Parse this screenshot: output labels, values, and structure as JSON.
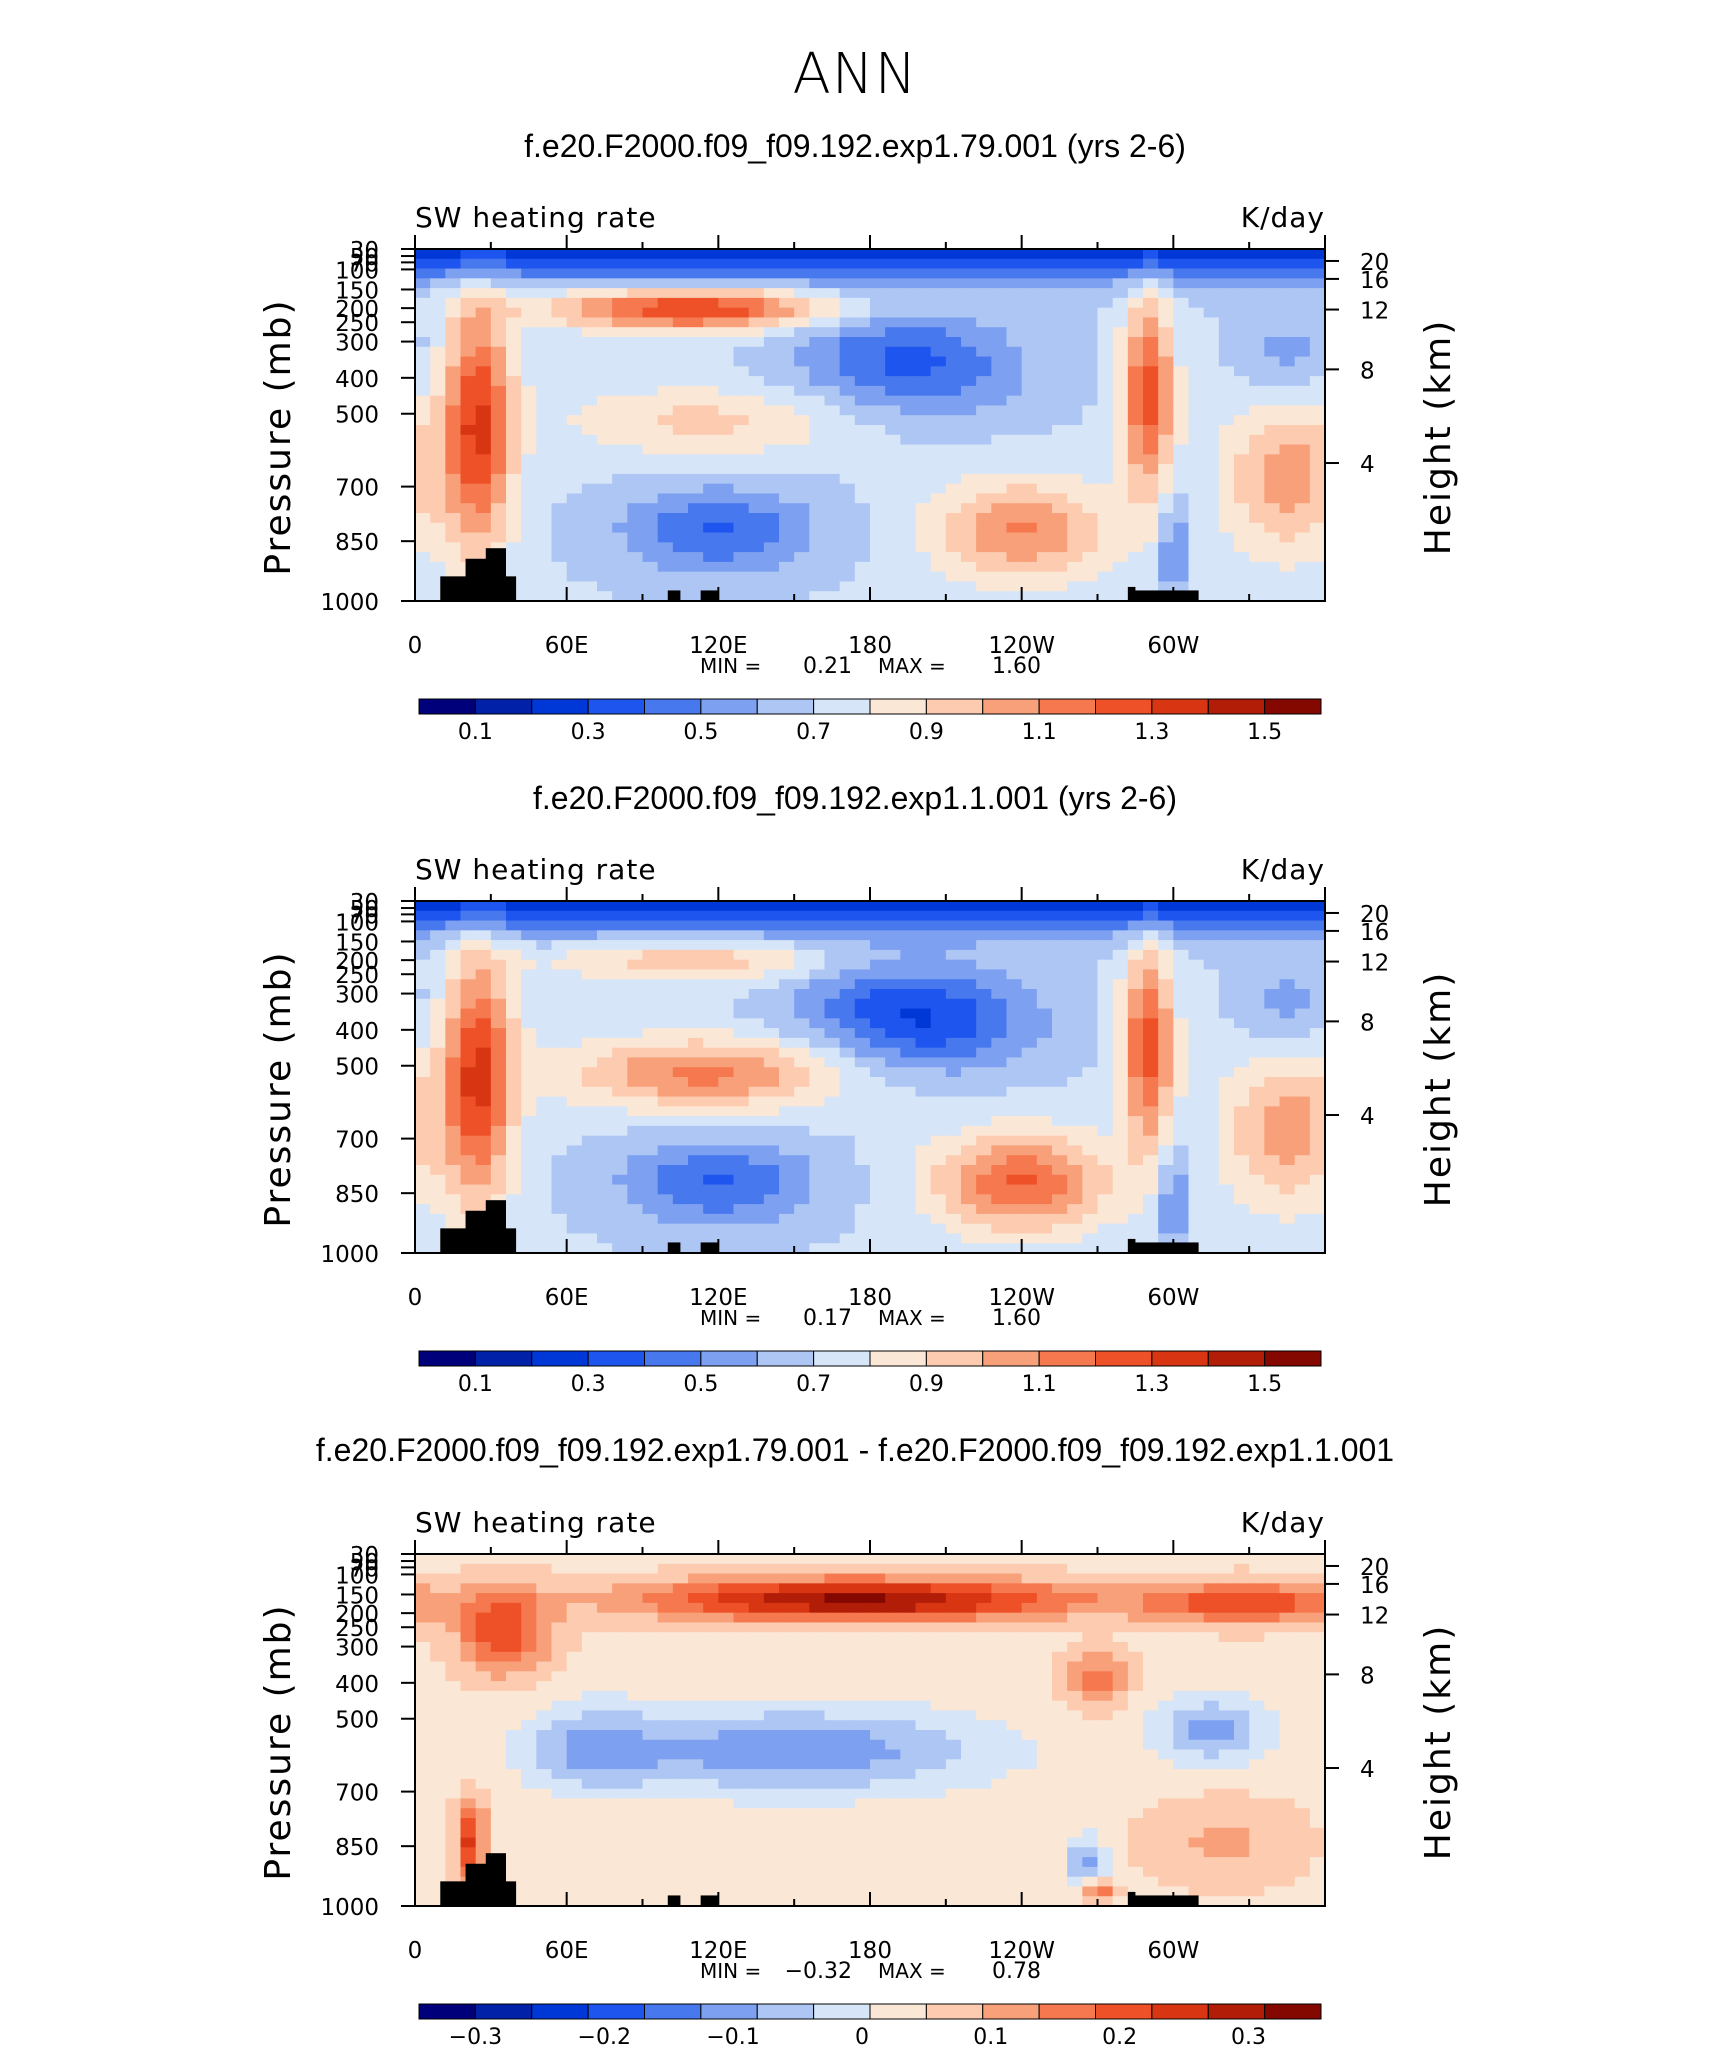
{
  "figure": {
    "title": "ANN"
  },
  "chart_data": [
    {
      "type": "heatmap",
      "title": "f.e20.F2000.f09_f09.192.exp1.79.001 (yrs 2-6)",
      "left_label": "SW heating rate",
      "right_label": "K/day",
      "ylabel": "Pressure (mb)",
      "ylabel_right": "Height (km)",
      "x_ticks": [
        "0",
        "60E",
        "120E",
        "180",
        "120W",
        "60W"
      ],
      "y_ticks": [
        "30",
        "50",
        "70",
        "100",
        "150",
        "200",
        "250",
        "300",
        "400",
        "500",
        "700",
        "850",
        "1000"
      ],
      "y_right_ticks": [
        "20",
        "16",
        "12",
        "8",
        "4"
      ],
      "stats": {
        "min_label": "MIN =",
        "min_value": "0.21",
        "max_label": "MAX =",
        "max_value": "1.60"
      },
      "colorbar_levels": [
        "0.1",
        "0.3",
        "0.5",
        "0.7",
        "0.9",
        "1.1",
        "1.3",
        "1.5"
      ],
      "colorbar_colors": [
        "#00007a",
        "#0021a8",
        "#0038d8",
        "#1e55ee",
        "#4878ee",
        "#7ea0f0",
        "#aec6f4",
        "#d6e6f8",
        "#fbe7d6",
        "#fccbb0",
        "#f8a07a",
        "#f5784e",
        "#ee5028",
        "#d83612",
        "#b21d08",
        "#840800"
      ]
    },
    {
      "type": "heatmap",
      "title": "f.e20.F2000.f09_f09.192.exp1.1.001 (yrs 2-6)",
      "left_label": "SW heating rate",
      "right_label": "K/day",
      "ylabel": "Pressure (mb)",
      "ylabel_right": "Height (km)",
      "x_ticks": [
        "0",
        "60E",
        "120E",
        "180",
        "120W",
        "60W"
      ],
      "y_ticks": [
        "30",
        "50",
        "70",
        "100",
        "150",
        "200",
        "250",
        "300",
        "400",
        "500",
        "700",
        "850",
        "1000"
      ],
      "y_right_ticks": [
        "20",
        "16",
        "12",
        "8",
        "4"
      ],
      "stats": {
        "min_label": "MIN =",
        "min_value": "0.17",
        "max_label": "MAX =",
        "max_value": "1.60"
      },
      "colorbar_levels": [
        "0.1",
        "0.3",
        "0.5",
        "0.7",
        "0.9",
        "1.1",
        "1.3",
        "1.5"
      ],
      "colorbar_colors": [
        "#00007a",
        "#0021a8",
        "#0038d8",
        "#1e55ee",
        "#4878ee",
        "#7ea0f0",
        "#aec6f4",
        "#d6e6f8",
        "#fbe7d6",
        "#fccbb0",
        "#f8a07a",
        "#f5784e",
        "#ee5028",
        "#d83612",
        "#b21d08",
        "#840800"
      ]
    },
    {
      "type": "heatmap",
      "title": "f.e20.F2000.f09_f09.192.exp1.79.001 - f.e20.F2000.f09_f09.192.exp1.1.001",
      "left_label": "SW heating rate",
      "right_label": "K/day",
      "ylabel": "Pressure (mb)",
      "ylabel_right": "Height (km)",
      "x_ticks": [
        "0",
        "60E",
        "120E",
        "180",
        "120W",
        "60W"
      ],
      "y_ticks": [
        "30",
        "50",
        "70",
        "100",
        "150",
        "200",
        "250",
        "300",
        "400",
        "500",
        "700",
        "850",
        "1000"
      ],
      "y_right_ticks": [
        "20",
        "16",
        "12",
        "8",
        "4"
      ],
      "stats": {
        "min_label": "MIN =",
        "min_value": "−0.32",
        "max_label": "MAX =",
        "max_value": "0.78"
      },
      "colorbar_levels": [
        "−0.3",
        "−0.2",
        "−0.1",
        "0",
        "0.1",
        "0.2",
        "0.3"
      ],
      "colorbar_colors": [
        "#00007a",
        "#0021a8",
        "#0038d8",
        "#1e55ee",
        "#4878ee",
        "#7ea0f0",
        "#aec6f4",
        "#d6e6f8",
        "#fbe7d6",
        "#fccbb0",
        "#f8a07a",
        "#f5784e",
        "#ee5028",
        "#d83612",
        "#b21d08",
        "#840800"
      ]
    }
  ]
}
